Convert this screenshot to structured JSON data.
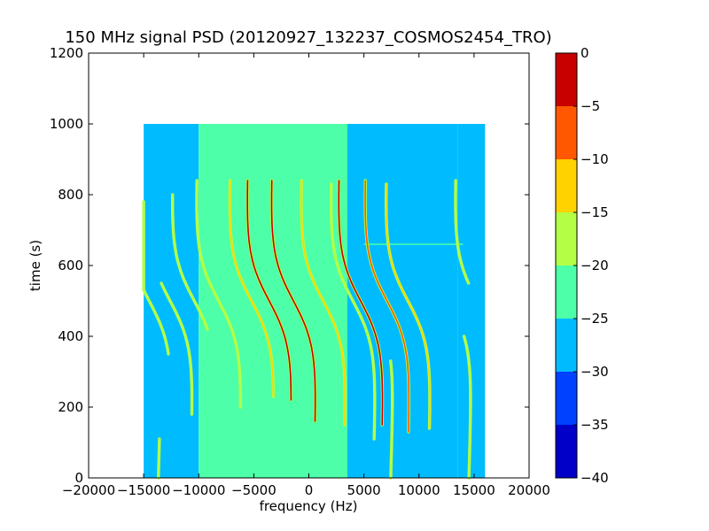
{
  "chart_data": {
    "type": "heatmap",
    "title": "150 MHz signal PSD (20120927_132237_COSMOS2454_TRO)",
    "xlabel": "frequency (Hz)",
    "ylabel": "time (s)",
    "xlim": [
      -20000,
      20000
    ],
    "ylim": [
      0,
      1200
    ],
    "xticks": [
      "−20000",
      "−15000",
      "−10000",
      "−5000",
      "0",
      "5000",
      "10000",
      "15000",
      "20000"
    ],
    "xtick_values": [
      -20000,
      -15000,
      -10000,
      -5000,
      0,
      5000,
      10000,
      15000,
      20000
    ],
    "yticks": [
      "0",
      "200",
      "400",
      "600",
      "800",
      "1000",
      "1200"
    ],
    "ytick_values": [
      0,
      200,
      400,
      600,
      800,
      1000,
      1200
    ],
    "data_extent": {
      "x": [
        -15000,
        16000
      ],
      "y": [
        0,
        1000
      ]
    },
    "background_regions": [
      {
        "x": [
          -15000,
          -10000
        ],
        "level": -26
      },
      {
        "x": [
          -10000,
          2500
        ],
        "level": -22
      },
      {
        "x": [
          2500,
          3500
        ],
        "level": -24
      },
      {
        "x": [
          3500,
          13500
        ],
        "level": -28
      },
      {
        "x": [
          13500,
          16000
        ],
        "level": -25
      }
    ],
    "horizontal_feature": {
      "x": [
        5000,
        14000
      ],
      "y": 660,
      "level": -22
    },
    "traces": [
      {
        "x0": -3600,
        "y_top": 840,
        "y_bottom": 220,
        "level": -3
      },
      {
        "x0": -1400,
        "y_top": 840,
        "y_bottom": 160,
        "level": -3
      },
      {
        "x0": 4700,
        "y_top": 840,
        "y_bottom": 150,
        "level": -4
      },
      {
        "x0": 7100,
        "y_top": 840,
        "y_bottom": 130,
        "level": -6
      },
      {
        "x0": -5200,
        "y_top": 840,
        "y_bottom": 230,
        "level": -13
      },
      {
        "x0": 1300,
        "y_top": 840,
        "y_bottom": 150,
        "level": -12
      },
      {
        "x0": 9000,
        "y_top": 830,
        "y_bottom": 140,
        "level": -13
      },
      {
        "x0": 15300,
        "y_top": 840,
        "y_bottom": 550,
        "level": -16
      },
      {
        "x0": -14500,
        "y_top": 780,
        "y_bottom": 350,
        "level": -16
      },
      {
        "x0": -12600,
        "y_top": 550,
        "y_bottom": 180,
        "level": -16
      },
      {
        "x0": -10400,
        "y_top": 800,
        "y_bottom": 420,
        "level": -15
      },
      {
        "x0": -8200,
        "y_top": 840,
        "y_bottom": 200,
        "level": -16
      },
      {
        "x0": 4000,
        "y_top": 830,
        "y_bottom": 110,
        "level": -17
      },
      {
        "x0": -15500,
        "y_top": 110,
        "y_bottom": 0,
        "level": -16
      },
      {
        "x0": 5600,
        "y_top": 330,
        "y_bottom": 0,
        "level": -18
      },
      {
        "x0": 12700,
        "y_top": 400,
        "y_bottom": 0,
        "level": -16
      }
    ],
    "colorbar": {
      "range": [
        -40,
        0
      ],
      "ticks": [
        "0",
        "−5",
        "−10",
        "−15",
        "−20",
        "−25",
        "−30",
        "−35",
        "−40"
      ],
      "tick_values": [
        0,
        -5,
        -10,
        -15,
        -20,
        -25,
        -30,
        -35,
        -40
      ],
      "bands": [
        {
          "from": -40,
          "to": -35,
          "color": "#0000c8"
        },
        {
          "from": -35,
          "to": -30,
          "color": "#0040ff"
        },
        {
          "from": -30,
          "to": -25,
          "color": "#00bcff"
        },
        {
          "from": -25,
          "to": -20,
          "color": "#4cffa8"
        },
        {
          "from": -20,
          "to": -15,
          "color": "#b4ff46"
        },
        {
          "from": -15,
          "to": -10,
          "color": "#ffd200"
        },
        {
          "from": -10,
          "to": -5,
          "color": "#ff5800"
        },
        {
          "from": -5,
          "to": 0,
          "color": "#c80000"
        }
      ]
    }
  }
}
